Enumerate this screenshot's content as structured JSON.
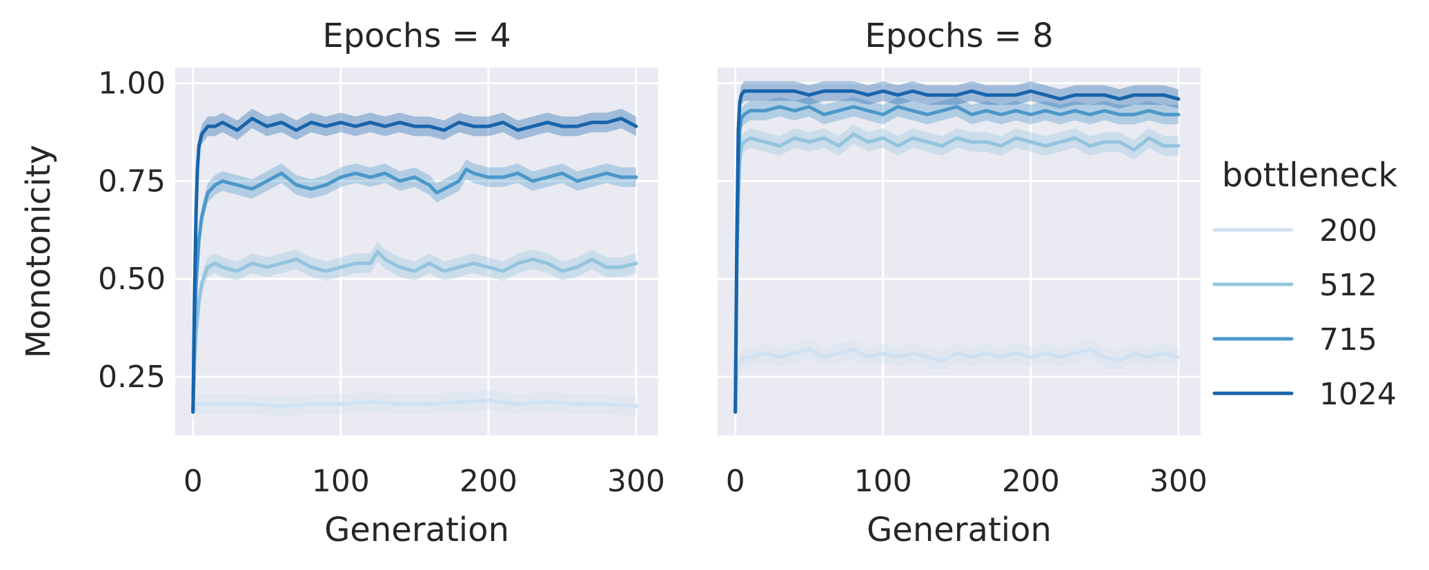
{
  "chart_data": [
    {
      "type": "line",
      "title": "Epochs = 4",
      "xlabel": "Generation",
      "ylabel": "Monotonicity",
      "xlim": [
        -12,
        315
      ],
      "ylim": [
        0.1,
        1.04
      ],
      "xticks": [
        0,
        100,
        200,
        300
      ],
      "yticks": [
        0.25,
        0.5,
        0.75,
        1.0
      ],
      "ytick_labels": [
        "0.25",
        "0.50",
        "0.75",
        "1.00"
      ],
      "grid": true,
      "band_halfwidth": 0.025,
      "series": [
        {
          "name": "200",
          "color": "#cfe1f2",
          "x": [
            0,
            1,
            2,
            5,
            10,
            20,
            40,
            60,
            80,
            100,
            120,
            140,
            160,
            180,
            200,
            220,
            240,
            260,
            280,
            300
          ],
          "y": [
            0.16,
            0.17,
            0.18,
            0.18,
            0.18,
            0.18,
            0.18,
            0.175,
            0.18,
            0.18,
            0.185,
            0.18,
            0.18,
            0.185,
            0.19,
            0.18,
            0.185,
            0.18,
            0.18,
            0.175
          ]
        },
        {
          "name": "512",
          "color": "#93c4de",
          "x": [
            0,
            1,
            2,
            4,
            6,
            8,
            10,
            15,
            20,
            30,
            40,
            50,
            60,
            70,
            80,
            90,
            100,
            110,
            120,
            125,
            130,
            140,
            150,
            160,
            170,
            180,
            190,
            200,
            210,
            220,
            230,
            240,
            250,
            260,
            270,
            280,
            290,
            300
          ],
          "y": [
            0.16,
            0.28,
            0.36,
            0.44,
            0.49,
            0.51,
            0.53,
            0.54,
            0.53,
            0.52,
            0.54,
            0.53,
            0.54,
            0.55,
            0.53,
            0.52,
            0.53,
            0.54,
            0.54,
            0.57,
            0.55,
            0.53,
            0.52,
            0.54,
            0.52,
            0.53,
            0.54,
            0.53,
            0.52,
            0.54,
            0.55,
            0.54,
            0.52,
            0.53,
            0.55,
            0.53,
            0.53,
            0.54
          ]
        },
        {
          "name": "715",
          "color": "#4a98c9",
          "x": [
            0,
            1,
            2,
            4,
            6,
            8,
            10,
            15,
            20,
            30,
            40,
            50,
            60,
            70,
            80,
            90,
            100,
            110,
            120,
            130,
            140,
            150,
            160,
            165,
            170,
            180,
            185,
            190,
            200,
            210,
            220,
            230,
            240,
            250,
            260,
            270,
            280,
            290,
            300
          ],
          "y": [
            0.16,
            0.34,
            0.48,
            0.6,
            0.66,
            0.69,
            0.72,
            0.74,
            0.75,
            0.74,
            0.73,
            0.75,
            0.77,
            0.74,
            0.73,
            0.74,
            0.76,
            0.77,
            0.76,
            0.77,
            0.75,
            0.76,
            0.74,
            0.72,
            0.73,
            0.75,
            0.78,
            0.77,
            0.76,
            0.76,
            0.77,
            0.75,
            0.76,
            0.77,
            0.75,
            0.76,
            0.77,
            0.76,
            0.76
          ]
        },
        {
          "name": "1024",
          "color": "#1764ab",
          "x": [
            0,
            1,
            2,
            3,
            4,
            6,
            8,
            10,
            15,
            20,
            30,
            40,
            50,
            60,
            70,
            80,
            90,
            100,
            110,
            120,
            130,
            140,
            150,
            160,
            170,
            180,
            190,
            200,
            210,
            220,
            230,
            240,
            250,
            260,
            270,
            280,
            290,
            300
          ],
          "y": [
            0.16,
            0.45,
            0.66,
            0.78,
            0.84,
            0.87,
            0.88,
            0.89,
            0.89,
            0.9,
            0.88,
            0.91,
            0.89,
            0.9,
            0.88,
            0.9,
            0.89,
            0.9,
            0.89,
            0.9,
            0.89,
            0.9,
            0.89,
            0.89,
            0.88,
            0.9,
            0.89,
            0.89,
            0.9,
            0.88,
            0.89,
            0.9,
            0.89,
            0.89,
            0.9,
            0.9,
            0.91,
            0.89
          ]
        }
      ]
    },
    {
      "type": "line",
      "title": "Epochs = 8",
      "xlabel": "Generation",
      "ylabel": "",
      "xlim": [
        -12,
        315
      ],
      "ylim": [
        0.1,
        1.04
      ],
      "xticks": [
        0,
        100,
        200,
        300
      ],
      "yticks": [
        0.25,
        0.5,
        0.75,
        1.0
      ],
      "ytick_labels": [
        "",
        "",
        "",
        ""
      ],
      "grid": true,
      "band_halfwidth": 0.025,
      "series": [
        {
          "name": "200",
          "color": "#cfe1f2",
          "x": [
            0,
            1,
            2,
            4,
            6,
            10,
            20,
            30,
            40,
            50,
            60,
            70,
            80,
            90,
            100,
            110,
            120,
            130,
            140,
            150,
            160,
            170,
            180,
            190,
            200,
            210,
            220,
            230,
            240,
            250,
            260,
            270,
            280,
            290,
            300
          ],
          "y": [
            0.16,
            0.24,
            0.28,
            0.29,
            0.3,
            0.3,
            0.31,
            0.3,
            0.31,
            0.32,
            0.3,
            0.31,
            0.32,
            0.3,
            0.31,
            0.3,
            0.31,
            0.3,
            0.29,
            0.31,
            0.3,
            0.31,
            0.3,
            0.31,
            0.3,
            0.31,
            0.3,
            0.31,
            0.32,
            0.3,
            0.29,
            0.31,
            0.3,
            0.31,
            0.3
          ]
        },
        {
          "name": "512",
          "color": "#93c4de",
          "x": [
            0,
            1,
            2,
            3,
            4,
            6,
            10,
            20,
            30,
            40,
            50,
            60,
            70,
            80,
            90,
            100,
            110,
            120,
            130,
            140,
            150,
            160,
            170,
            180,
            190,
            200,
            210,
            220,
            230,
            240,
            250,
            260,
            270,
            280,
            290,
            300
          ],
          "y": [
            0.16,
            0.5,
            0.7,
            0.8,
            0.84,
            0.85,
            0.86,
            0.85,
            0.84,
            0.86,
            0.85,
            0.86,
            0.84,
            0.87,
            0.85,
            0.86,
            0.84,
            0.86,
            0.85,
            0.84,
            0.86,
            0.85,
            0.85,
            0.84,
            0.86,
            0.85,
            0.84,
            0.85,
            0.86,
            0.84,
            0.85,
            0.85,
            0.83,
            0.86,
            0.84,
            0.84
          ]
        },
        {
          "name": "715",
          "color": "#4a98c9",
          "x": [
            0,
            1,
            2,
            3,
            4,
            6,
            10,
            20,
            30,
            40,
            50,
            60,
            70,
            80,
            90,
            100,
            110,
            120,
            130,
            140,
            150,
            160,
            170,
            180,
            190,
            200,
            210,
            220,
            230,
            240,
            250,
            260,
            270,
            280,
            290,
            300
          ],
          "y": [
            0.16,
            0.55,
            0.78,
            0.88,
            0.91,
            0.92,
            0.93,
            0.93,
            0.94,
            0.93,
            0.94,
            0.92,
            0.93,
            0.94,
            0.93,
            0.92,
            0.94,
            0.93,
            0.92,
            0.93,
            0.94,
            0.92,
            0.93,
            0.92,
            0.93,
            0.92,
            0.93,
            0.92,
            0.93,
            0.92,
            0.93,
            0.92,
            0.92,
            0.93,
            0.92,
            0.92
          ]
        },
        {
          "name": "1024",
          "color": "#1764ab",
          "x": [
            0,
            1,
            2,
            3,
            4,
            6,
            10,
            20,
            30,
            40,
            50,
            60,
            70,
            80,
            90,
            100,
            110,
            120,
            130,
            140,
            150,
            160,
            170,
            180,
            190,
            200,
            210,
            220,
            230,
            240,
            250,
            260,
            270,
            280,
            290,
            300
          ],
          "y": [
            0.16,
            0.6,
            0.88,
            0.95,
            0.97,
            0.98,
            0.98,
            0.98,
            0.98,
            0.98,
            0.97,
            0.98,
            0.98,
            0.98,
            0.97,
            0.98,
            0.97,
            0.98,
            0.97,
            0.97,
            0.97,
            0.98,
            0.97,
            0.97,
            0.97,
            0.98,
            0.97,
            0.96,
            0.97,
            0.97,
            0.97,
            0.96,
            0.97,
            0.97,
            0.97,
            0.96
          ]
        }
      ]
    }
  ],
  "legend": {
    "title": "bottleneck",
    "placement": "right",
    "entries": [
      {
        "label": "200",
        "color": "#cfe1f2"
      },
      {
        "label": "512",
        "color": "#93c4de"
      },
      {
        "label": "715",
        "color": "#4a98c9"
      },
      {
        "label": "1024",
        "color": "#1764ab"
      }
    ]
  }
}
